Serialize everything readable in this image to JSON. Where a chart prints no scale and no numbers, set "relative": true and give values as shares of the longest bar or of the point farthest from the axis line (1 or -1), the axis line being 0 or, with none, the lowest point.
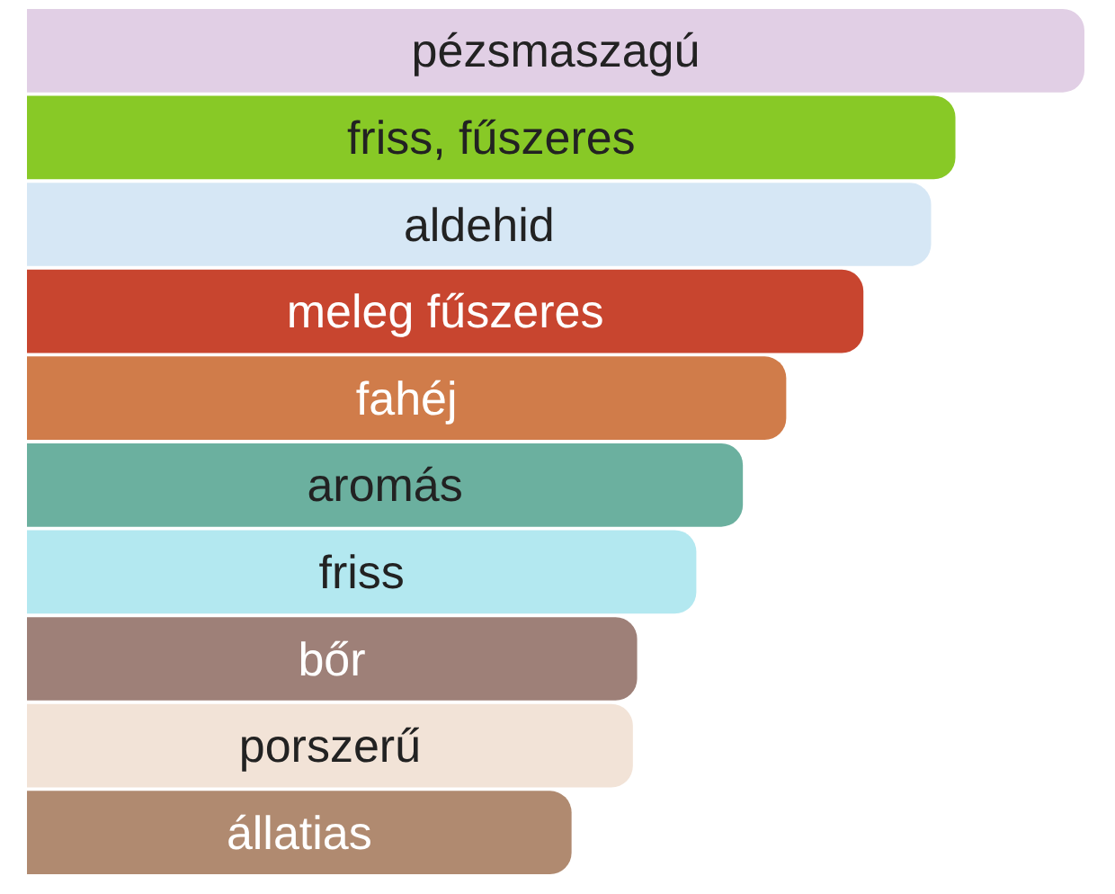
{
  "chart_data": {
    "type": "bar",
    "orientation": "horizontal",
    "relative": true,
    "categories": [
      "pézsmaszagú",
      "friss, fűszeres",
      "aldehid",
      "meleg fűszeres",
      "fahéj",
      "aromás",
      "friss",
      "bőr",
      "porszerű",
      "állatias"
    ],
    "values": [
      1,
      0.878,
      0.855,
      0.791,
      0.718,
      0.677,
      0.633,
      0.577,
      0.573,
      0.515
    ],
    "colors": [
      "#e1cfe5",
      "#88c926",
      "#d6e7f5",
      "#c8452f",
      "#d07c4a",
      "#6bb09f",
      "#b3e8f0",
      "#9e8078",
      "#f2e3d7",
      "#b08a70"
    ]
  }
}
